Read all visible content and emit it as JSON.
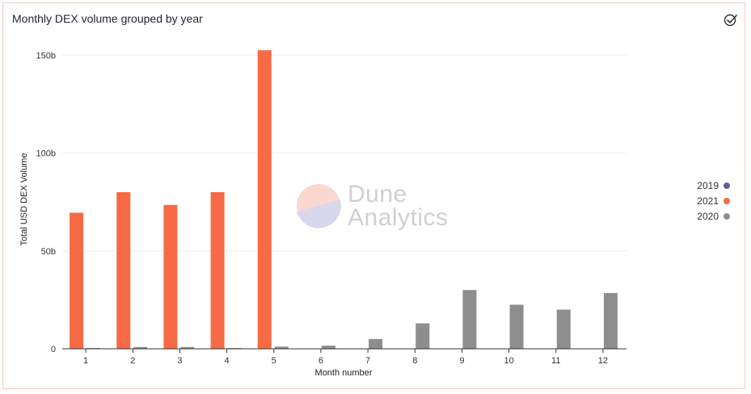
{
  "chart_title": "Monthly DEX volume grouped by year",
  "watermark": {
    "line1": "Dune",
    "line2": "Analytics"
  },
  "icons": {
    "check": "check-circle-icon"
  },
  "colors": {
    "2019": "#5b5f9e",
    "2021": "#f66a45",
    "2020": "#8e8e8e"
  },
  "chart_data": {
    "type": "bar",
    "xlabel": "Month number",
    "ylabel": "Total USD DEX Volume",
    "ylim": [
      0,
      160
    ],
    "yticks": [
      {
        "value": 0,
        "label": "0"
      },
      {
        "value": 50,
        "label": "50b"
      },
      {
        "value": 100,
        "label": "100b"
      },
      {
        "value": 150,
        "label": "150b"
      }
    ],
    "categories": [
      "1",
      "2",
      "3",
      "4",
      "5",
      "6",
      "7",
      "8",
      "9",
      "10",
      "11",
      "12"
    ],
    "grid": true,
    "legend_position": "right",
    "series": [
      {
        "name": "2019",
        "color": "#5b5f9e",
        "values": [
          0,
          0,
          0,
          0,
          0,
          0,
          0,
          0,
          0,
          0,
          0,
          0
        ]
      },
      {
        "name": "2021",
        "color": "#f66a45",
        "values": [
          69.5,
          80,
          73.5,
          80,
          152.5,
          0,
          0,
          0,
          0,
          0,
          0,
          0
        ]
      },
      {
        "name": "2020",
        "color": "#8e8e8e",
        "values": [
          0.4,
          0.9,
          0.9,
          0.4,
          1.1,
          1.6,
          5,
          13,
          30,
          22.5,
          20,
          28.5
        ]
      }
    ]
  }
}
